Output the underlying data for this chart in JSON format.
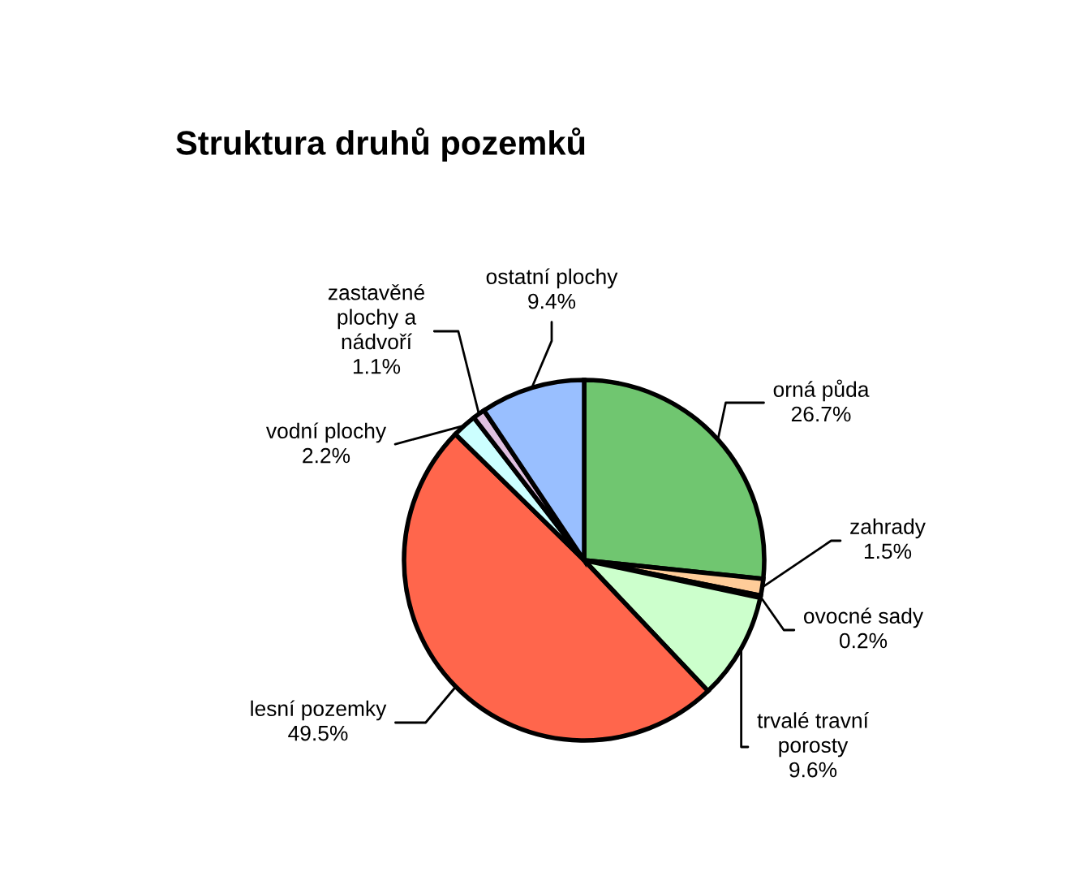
{
  "chart_data": {
    "type": "pie",
    "title": "Struktura druhů pozemků",
    "categories": [
      "orná půda",
      "zahrady",
      "ovocné sady",
      "trvalé travní porosty",
      "lesní pozemky",
      "vodní plochy",
      "zastavěné plochy a nádvoří",
      "ostatní plochy"
    ],
    "values": [
      26.7,
      1.5,
      0.2,
      9.6,
      49.5,
      2.2,
      1.1,
      9.4
    ],
    "value_labels": [
      "26.7%",
      "1.5%",
      "0.2%",
      "9.6%",
      "49.5%",
      "2.2%",
      "1.1%",
      "9.4%"
    ],
    "colors": [
      "#70c670",
      "#ffcc99",
      "#000000",
      "#ccffcc",
      "#ff664c",
      "#ccffff",
      "#e0c0e0",
      "#99bfff"
    ]
  }
}
